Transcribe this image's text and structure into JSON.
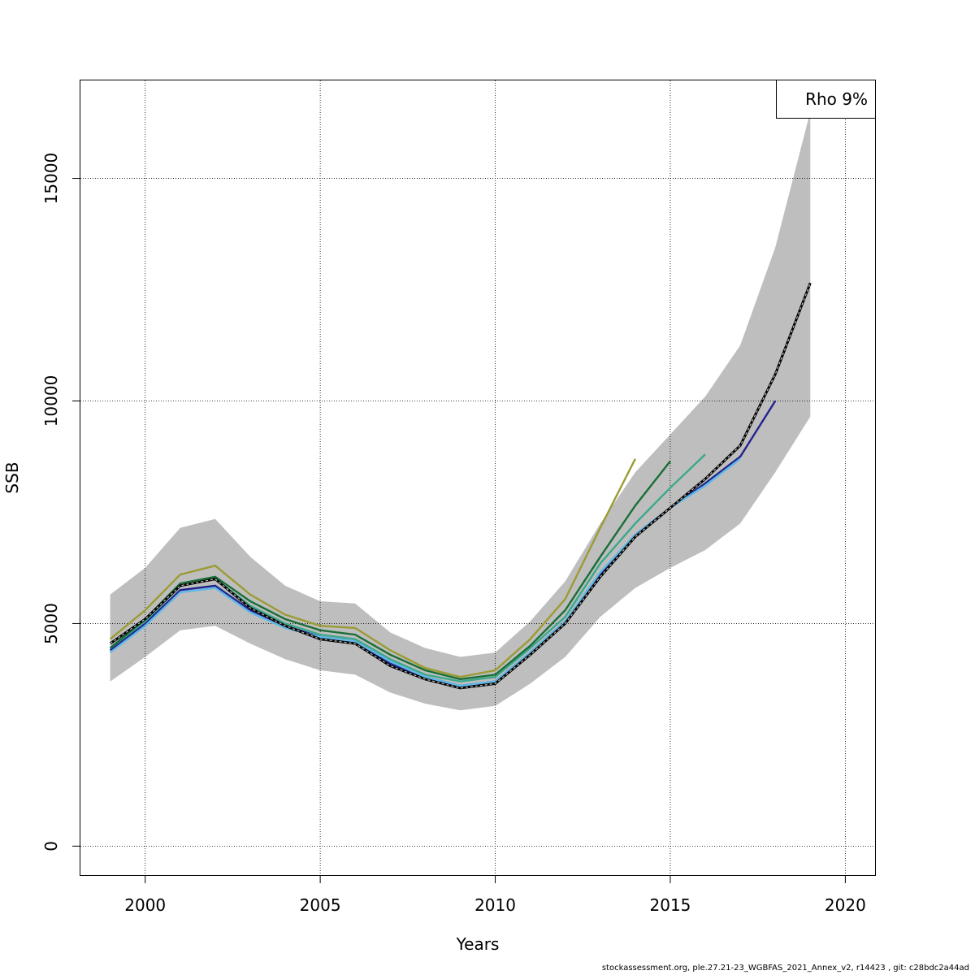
{
  "chart_data": {
    "type": "line",
    "xlabel": "Years",
    "ylabel": "SSB",
    "xlim": [
      1998.15,
      2020.85
    ],
    "ylim": [
      -650,
      17200
    ],
    "x_ticks": [
      2000,
      2005,
      2010,
      2015,
      2020
    ],
    "y_ticks": [
      0,
      5000,
      10000,
      15000
    ],
    "x_tick_labels": [
      "2000",
      "2005",
      "2010",
      "2015",
      "2020"
    ],
    "y_tick_labels": [
      "0",
      "5000",
      "10000",
      "15000"
    ],
    "grid": true,
    "legend": {
      "placement": "top-right",
      "text": "Rho 9%"
    },
    "confidence_band": {
      "x": [
        1999,
        2000,
        2001,
        2002,
        2003,
        2004,
        2005,
        2006,
        2007,
        2008,
        2009,
        2010,
        2011,
        2012,
        2013,
        2014,
        2015,
        2016,
        2017,
        2018,
        2019
      ],
      "upper": [
        5650,
        6250,
        7150,
        7350,
        6500,
        5850,
        5500,
        5450,
        4800,
        4450,
        4250,
        4350,
        5050,
        5950,
        7250,
        8400,
        9250,
        10100,
        11250,
        13450,
        16500
      ],
      "lower": [
        3700,
        4250,
        4850,
        4950,
        4550,
        4200,
        3950,
        3850,
        3450,
        3200,
        3050,
        3150,
        3650,
        4250,
        5150,
        5800,
        6250,
        6650,
        7250,
        8400,
        9650
      ],
      "color": "#bebebe"
    },
    "series": [
      {
        "color": "#000000",
        "dashed": true,
        "x": [
          1999,
          2000,
          2001,
          2002,
          2003,
          2004,
          2005,
          2006,
          2007,
          2008,
          2009,
          2010,
          2011,
          2012,
          2013,
          2014,
          2015,
          2016,
          2017,
          2018,
          2019
        ],
        "values": [
          4550,
          5100,
          5850,
          6000,
          5350,
          4950,
          4650,
          4550,
          4050,
          3750,
          3550,
          3650,
          4300,
          5000,
          6050,
          6950,
          7600,
          8250,
          9000,
          10600,
          12650
        ]
      },
      {
        "color": "#23238e",
        "x": [
          1999,
          2000,
          2001,
          2002,
          2003,
          2004,
          2005,
          2006,
          2007,
          2008,
          2009,
          2010,
          2011,
          2012,
          2013,
          2014,
          2015,
          2016,
          2017,
          2018
        ],
        "values": [
          4400,
          5000,
          5750,
          5850,
          5300,
          4950,
          4700,
          4600,
          4100,
          3800,
          3600,
          3700,
          4350,
          5050,
          6100,
          7000,
          7600,
          8150,
          8750,
          10000
        ]
      },
      {
        "color": "#5fb8e8",
        "x": [
          1999,
          2000,
          2001,
          2002,
          2003,
          2004,
          2005,
          2006,
          2007,
          2008,
          2009,
          2010,
          2011,
          2012,
          2013,
          2014,
          2015,
          2016,
          2017
        ],
        "values": [
          4350,
          4950,
          5700,
          5800,
          5250,
          4900,
          4700,
          4600,
          4150,
          3800,
          3600,
          3700,
          4350,
          5050,
          6150,
          7000,
          7600,
          8100,
          8700
        ]
      },
      {
        "color": "#3aa88a",
        "x": [
          1999,
          2000,
          2001,
          2002,
          2003,
          2004,
          2005,
          2006,
          2007,
          2008,
          2009,
          2010,
          2011,
          2012,
          2013,
          2014,
          2015,
          2016
        ],
        "values": [
          4450,
          5050,
          5850,
          6000,
          5400,
          5000,
          4750,
          4650,
          4200,
          3850,
          3700,
          3800,
          4450,
          5150,
          6350,
          7250,
          8050,
          8800
        ]
      },
      {
        "color": "#1a6e38",
        "x": [
          1999,
          2000,
          2001,
          2002,
          2003,
          2004,
          2005,
          2006,
          2007,
          2008,
          2009,
          2010,
          2011,
          2012,
          2013,
          2014,
          2015
        ],
        "values": [
          4450,
          5100,
          5900,
          6050,
          5500,
          5100,
          4850,
          4750,
          4300,
          3950,
          3750,
          3850,
          4500,
          5300,
          6500,
          7650,
          8650
        ]
      },
      {
        "color": "#9b9b35",
        "x": [
          1999,
          2000,
          2001,
          2002,
          2003,
          2004,
          2005,
          2006,
          2007,
          2008,
          2009,
          2010,
          2011,
          2012,
          2013,
          2014
        ],
        "values": [
          4650,
          5300,
          6100,
          6300,
          5650,
          5200,
          4950,
          4900,
          4400,
          4000,
          3800,
          3950,
          4650,
          5550,
          7150,
          8700
        ]
      }
    ]
  },
  "footer_text": "stockassessment.org, ple.27.21-23_WGBFAS_2021_Annex_v2, r14423 , git: c28bdc2a44ad"
}
